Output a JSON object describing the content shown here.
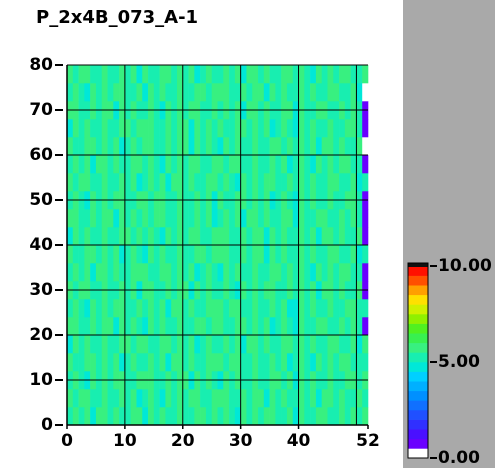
{
  "chart_data": {
    "type": "heatmap",
    "title": "P_2x4B_073_A-1",
    "x_bins": [
      0,
      1,
      2,
      3,
      4,
      5,
      6,
      7,
      8,
      9,
      10,
      11,
      12,
      13,
      14,
      15,
      16,
      17,
      18,
      19,
      20,
      21,
      22,
      23,
      24,
      25,
      26,
      27,
      28,
      29,
      30,
      31,
      32,
      33,
      34,
      35,
      36,
      37,
      38,
      39,
      40,
      41,
      42,
      43,
      44,
      45,
      46,
      47,
      48,
      49,
      50,
      51,
      52
    ],
    "y_bins": [
      0,
      4,
      8,
      12,
      16,
      20,
      24,
      28,
      32,
      36,
      40,
      44,
      48,
      52,
      56,
      60,
      64,
      68,
      72,
      76,
      80
    ],
    "xlim": [
      0,
      52
    ],
    "ylim": [
      0,
      80
    ],
    "xticks": [
      0,
      10,
      20,
      30,
      40,
      52
    ],
    "xgrid": [
      10,
      20,
      30,
      40,
      50
    ],
    "yticks": [
      0,
      10,
      20,
      30,
      40,
      50,
      60,
      70,
      80
    ],
    "grid": true,
    "zlim": [
      0,
      10
    ],
    "zticks": [
      {
        "value": 0,
        "label": "0.00"
      },
      {
        "value": 5,
        "label": "5.00"
      },
      {
        "value": 10,
        "label": "10.00"
      }
    ],
    "colormap": [
      "#ffffff",
      "#6a00ff",
      "#4a10ff",
      "#3030ff",
      "#2050ff",
      "#1070ff",
      "#0090ff",
      "#00b0ff",
      "#00d0ff",
      "#00e8d8",
      "#18eeb0",
      "#38f080",
      "#38f050",
      "#50f020",
      "#90f000",
      "#d0f000",
      "#ffe000",
      "#ffa000",
      "#ff5000",
      "#ff1000"
    ],
    "values": [
      [
        5.4,
        5.8,
        5.1,
        5.6,
        4.9,
        5.5,
        5.9,
        5.2,
        5.7,
        5.0,
        5.3,
        5.8,
        5.5,
        4.8,
        5.6,
        5.2,
        5.9,
        5.4,
        5.1,
        5.7,
        5.3,
        5.0,
        5.8,
        5.5,
        5.2,
        5.6,
        5.1,
        5.7,
        5.4,
        4.9,
        5.8,
        5.3,
        5.6,
        5.0,
        5.5,
        5.9,
        5.2,
        5.4,
        5.7,
        4.8,
        5.6,
        5.3,
        5.1,
        5.8,
        5.5,
        5.0,
        5.4,
        5.7,
        5.2,
        5.9,
        5.3,
        5.5
      ],
      [
        5.6,
        5.2,
        5.5,
        5.8,
        5.0,
        5.3,
        5.7,
        5.1,
        5.4,
        5.9,
        5.2,
        5.6,
        4.8,
        5.1,
        5.7,
        5.4,
        4.9,
        5.8,
        5.3,
        5.6,
        5.0,
        5.5,
        5.9,
        5.2,
        5.4,
        5.7,
        5.5,
        5.8,
        5.3,
        5.0,
        5.7,
        5.2,
        5.9,
        5.5,
        4.9,
        5.6,
        5.1,
        5.8,
        5.4,
        5.4,
        5.8,
        5.1,
        5.6,
        4.9,
        5.5,
        5.9,
        5.2,
        5.7,
        5.0,
        5.3,
        5.8,
        5.3
      ],
      [
        5.1,
        5.7,
        5.4,
        4.9,
        5.8,
        5.3,
        5.6,
        5.0,
        5.5,
        5.9,
        5.2,
        5.4,
        5.7,
        5.5,
        5.8,
        5.3,
        5.0,
        5.7,
        5.2,
        5.9,
        5.5,
        4.9,
        5.6,
        5.1,
        5.8,
        5.4,
        4.8,
        5.6,
        5.2,
        5.9,
        5.4,
        5.1,
        5.7,
        5.3,
        5.0,
        5.8,
        5.5,
        5.2,
        5.6,
        4.8,
        5.6,
        5.2,
        5.9,
        5.4,
        5.1,
        5.7,
        5.3,
        5.0,
        5.8,
        5.5,
        5.2,
        5.6
      ],
      [
        5.7,
        5.4,
        5.2,
        5.9,
        5.5,
        5.0,
        5.6,
        5.3,
        5.8,
        4.9,
        5.4,
        5.7,
        5.1,
        5.4,
        5.8,
        5.1,
        5.6,
        4.9,
        5.5,
        5.9,
        5.2,
        5.7,
        5.0,
        5.3,
        5.8,
        5.5,
        5.6,
        5.2,
        5.5,
        5.8,
        5.0,
        5.3,
        5.7,
        5.1,
        5.4,
        5.9,
        5.2,
        5.6,
        4.8,
        5.1,
        5.7,
        5.4,
        4.9,
        5.8,
        5.3,
        5.6,
        5.0,
        5.5,
        5.9,
        5.2,
        5.4,
        5.4
      ],
      [
        4.8,
        5.6,
        5.2,
        5.9,
        5.4,
        5.1,
        5.7,
        5.3,
        5.0,
        5.8,
        5.5,
        5.2,
        5.6,
        5.7,
        5.4,
        5.2,
        5.9,
        5.5,
        5.0,
        5.6,
        5.3,
        5.8,
        4.9,
        5.4,
        5.7,
        5.1,
        5.4,
        5.8,
        5.1,
        5.6,
        4.9,
        5.5,
        5.9,
        5.2,
        5.7,
        5.0,
        5.3,
        5.8,
        5.5,
        5.3,
        5.9,
        5.2,
        5.7,
        5.4,
        5.0,
        5.5,
        5.8,
        5.1,
        5.3,
        5.6,
        4.8,
        5.5
      ],
      [
        5.5,
        5.8,
        5.3,
        5.0,
        5.7,
        5.2,
        5.9,
        5.5,
        4.9,
        5.6,
        5.1,
        5.8,
        5.4,
        4.8,
        5.6,
        5.2,
        5.9,
        5.4,
        5.1,
        5.7,
        5.3,
        5.0,
        5.8,
        5.5,
        5.2,
        5.6,
        5.7,
        5.4,
        5.2,
        5.9,
        5.5,
        5.0,
        5.6,
        5.3,
        5.8,
        4.9,
        5.4,
        5.7,
        5.1,
        4.8,
        5.6,
        5.3,
        5.1,
        5.8,
        5.5,
        5.0,
        5.4,
        5.7,
        5.2,
        5.9,
        5.3,
        0.6
      ],
      [
        5.1,
        5.7,
        5.4,
        4.9,
        5.8,
        5.3,
        5.6,
        5.0,
        5.5,
        5.9,
        5.2,
        5.4,
        5.7,
        5.4,
        5.8,
        5.1,
        5.6,
        4.9,
        5.5,
        5.9,
        5.2,
        5.7,
        5.0,
        5.3,
        5.8,
        5.5,
        5.6,
        5.2,
        5.5,
        5.8,
        5.0,
        5.3,
        5.7,
        5.1,
        5.4,
        5.9,
        5.2,
        5.6,
        4.8,
        4.8,
        5.6,
        5.2,
        5.9,
        5.4,
        5.1,
        5.7,
        5.3,
        5.0,
        5.8,
        5.5,
        5.2,
        5.3
      ],
      [
        5.6,
        5.2,
        5.5,
        5.8,
        5.0,
        5.3,
        5.7,
        5.1,
        5.4,
        5.9,
        5.2,
        5.6,
        4.8,
        5.5,
        5.8,
        5.3,
        5.0,
        5.7,
        5.2,
        5.9,
        5.5,
        4.9,
        5.6,
        5.1,
        5.8,
        5.4,
        5.1,
        5.7,
        5.4,
        4.9,
        5.8,
        5.3,
        5.6,
        5.0,
        5.5,
        5.9,
        5.2,
        5.4,
        5.7,
        5.4,
        5.8,
        5.1,
        5.6,
        4.9,
        5.5,
        5.9,
        5.2,
        5.7,
        5.0,
        5.3,
        5.8,
        0.7
      ],
      [
        5.4,
        5.8,
        5.1,
        5.6,
        4.9,
        5.5,
        5.9,
        5.2,
        5.7,
        5.0,
        5.3,
        5.8,
        5.5,
        5.7,
        5.4,
        5.2,
        5.9,
        5.5,
        5.0,
        5.6,
        5.3,
        5.8,
        4.9,
        5.4,
        5.7,
        5.1,
        4.8,
        5.6,
        5.2,
        5.9,
        5.4,
        5.1,
        5.7,
        5.3,
        5.0,
        5.8,
        5.5,
        5.2,
        5.6,
        5.1,
        5.7,
        5.4,
        4.9,
        5.8,
        5.3,
        5.6,
        5.0,
        5.5,
        5.9,
        5.2,
        5.4,
        0.5
      ],
      [
        5.7,
        5.4,
        5.2,
        5.9,
        5.5,
        5.0,
        5.6,
        5.3,
        5.8,
        4.9,
        5.4,
        5.7,
        5.1,
        4.8,
        5.6,
        5.2,
        5.9,
        5.4,
        5.1,
        5.7,
        5.3,
        5.0,
        5.8,
        5.5,
        5.2,
        5.6,
        5.5,
        5.8,
        5.3,
        5.0,
        5.7,
        5.2,
        5.9,
        5.5,
        4.9,
        5.6,
        5.1,
        5.8,
        5.4,
        5.3,
        5.9,
        5.2,
        5.7,
        5.4,
        5.0,
        5.5,
        5.8,
        5.1,
        5.3,
        5.6,
        4.8,
        5.2
      ],
      [
        4.8,
        5.6,
        5.2,
        5.9,
        5.4,
        5.1,
        5.7,
        5.3,
        5.0,
        5.8,
        5.5,
        5.2,
        5.6,
        5.1,
        5.7,
        5.4,
        4.9,
        5.8,
        5.3,
        5.6,
        5.0,
        5.5,
        5.9,
        5.2,
        5.4,
        5.7,
        5.5,
        5.8,
        5.3,
        5.0,
        5.7,
        5.2,
        5.9,
        5.5,
        4.9,
        5.6,
        5.1,
        5.8,
        5.4,
        5.4,
        5.8,
        5.1,
        5.6,
        4.9,
        5.5,
        5.9,
        5.2,
        5.7,
        5.0,
        5.3,
        5.8,
        0.6
      ],
      [
        5.5,
        5.8,
        5.3,
        5.0,
        5.7,
        5.2,
        5.9,
        5.5,
        4.9,
        5.6,
        5.1,
        5.8,
        5.4,
        5.6,
        5.2,
        5.5,
        5.8,
        5.0,
        5.3,
        5.7,
        5.1,
        5.4,
        5.9,
        5.2,
        5.6,
        4.8,
        5.4,
        5.8,
        5.1,
        5.6,
        4.9,
        5.5,
        5.9,
        5.2,
        5.7,
        5.0,
        5.3,
        5.8,
        5.5,
        4.8,
        5.6,
        5.3,
        5.1,
        5.8,
        5.5,
        5.0,
        5.4,
        5.7,
        5.2,
        5.9,
        5.3,
        0.5
      ],
      [
        5.1,
        5.7,
        5.4,
        4.9,
        5.8,
        5.3,
        5.6,
        5.0,
        5.5,
        5.9,
        5.2,
        5.4,
        5.7,
        5.6,
        5.2,
        5.5,
        5.8,
        5.0,
        5.3,
        5.7,
        5.1,
        5.4,
        5.9,
        5.2,
        5.6,
        4.8,
        5.7,
        5.4,
        5.2,
        5.9,
        5.5,
        5.0,
        5.6,
        5.3,
        5.8,
        4.9,
        5.4,
        5.7,
        5.1,
        4.8,
        5.6,
        5.2,
        5.9,
        5.4,
        5.1,
        5.7,
        5.3,
        5.0,
        5.8,
        5.5,
        5.2,
        0.6
      ],
      [
        5.6,
        5.2,
        5.5,
        5.8,
        5.0,
        5.3,
        5.7,
        5.1,
        5.4,
        5.9,
        5.2,
        5.6,
        4.8,
        5.4,
        5.8,
        5.1,
        5.6,
        4.9,
        5.5,
        5.9,
        5.2,
        5.7,
        5.0,
        5.3,
        5.8,
        5.5,
        5.1,
        5.7,
        5.4,
        4.9,
        5.8,
        5.3,
        5.6,
        5.0,
        5.5,
        5.9,
        5.2,
        5.4,
        5.7,
        5.3,
        5.9,
        5.2,
        5.7,
        5.4,
        5.0,
        5.5,
        5.8,
        5.1,
        5.3,
        5.6,
        4.8,
        5.4
      ],
      [
        5.4,
        5.8,
        5.1,
        5.6,
        4.9,
        5.5,
        5.9,
        5.2,
        5.7,
        5.0,
        5.3,
        5.8,
        5.5,
        5.1,
        5.7,
        5.4,
        4.9,
        5.8,
        5.3,
        5.6,
        5.0,
        5.5,
        5.9,
        5.2,
        5.4,
        5.7,
        5.6,
        5.2,
        5.5,
        5.8,
        5.0,
        5.3,
        5.7,
        5.1,
        5.4,
        5.9,
        5.2,
        5.6,
        4.8,
        5.1,
        5.7,
        5.4,
        4.9,
        5.8,
        5.3,
        5.6,
        5.0,
        5.5,
        5.9,
        5.2,
        5.4,
        0.5
      ],
      [
        5.7,
        5.4,
        5.2,
        5.9,
        5.5,
        5.0,
        5.6,
        5.3,
        5.8,
        4.9,
        5.4,
        5.7,
        5.1,
        5.5,
        5.8,
        5.3,
        5.0,
        5.7,
        5.2,
        5.9,
        5.5,
        4.9,
        5.6,
        5.1,
        5.8,
        5.4,
        4.8,
        5.6,
        5.2,
        5.9,
        5.4,
        5.1,
        5.7,
        5.3,
        5.0,
        5.8,
        5.5,
        5.2,
        5.6,
        5.4,
        5.8,
        5.1,
        5.6,
        4.9,
        5.5,
        5.9,
        5.2,
        5.7,
        5.0,
        5.3,
        5.8,
        0.4
      ],
      [
        4.8,
        5.6,
        5.2,
        5.9,
        5.4,
        5.1,
        5.7,
        5.3,
        5.0,
        5.8,
        5.5,
        5.2,
        5.6,
        5.5,
        5.8,
        5.3,
        5.0,
        5.7,
        5.2,
        5.9,
        5.5,
        4.9,
        5.6,
        5.1,
        5.8,
        5.4,
        5.7,
        5.4,
        5.2,
        5.9,
        5.5,
        5.0,
        5.6,
        5.3,
        5.8,
        4.9,
        5.4,
        5.7,
        5.1,
        4.8,
        5.6,
        5.2,
        5.9,
        5.4,
        5.1,
        5.7,
        5.3,
        5.0,
        5.8,
        5.5,
        5.2,
        0.6
      ],
      [
        5.5,
        5.8,
        5.3,
        5.0,
        5.7,
        5.2,
        5.9,
        5.5,
        4.9,
        5.6,
        5.1,
        5.8,
        5.4,
        5.1,
        5.7,
        5.4,
        4.9,
        5.8,
        5.3,
        5.6,
        5.0,
        5.5,
        5.9,
        5.2,
        5.4,
        5.7,
        5.4,
        5.8,
        5.1,
        5.6,
        4.9,
        5.5,
        5.9,
        5.2,
        5.7,
        5.0,
        5.3,
        5.8,
        5.5,
        4.8,
        5.6,
        5.3,
        5.1,
        5.8,
        5.5,
        5.0,
        5.4,
        5.7,
        5.2,
        5.9,
        5.3,
        0.5
      ],
      [
        5.1,
        5.7,
        5.4,
        4.9,
        5.8,
        5.3,
        5.6,
        5.0,
        5.5,
        5.9,
        5.2,
        5.4,
        5.7,
        4.8,
        5.6,
        5.2,
        5.9,
        5.4,
        5.1,
        5.7,
        5.3,
        5.0,
        5.8,
        5.5,
        5.2,
        5.6,
        5.5,
        5.8,
        5.3,
        5.0,
        5.7,
        5.2,
        5.9,
        5.5,
        4.9,
        5.6,
        5.1,
        5.8,
        5.4,
        5.3,
        5.9,
        5.2,
        5.7,
        5.4,
        5.0,
        5.5,
        5.8,
        5.1,
        5.3,
        5.6,
        4.8,
        0.4
      ],
      [
        5.6,
        5.2,
        5.5,
        5.8,
        5.0,
        5.3,
        5.7,
        5.1,
        5.4,
        5.9,
        5.2,
        5.6,
        4.8,
        5.7,
        5.4,
        5.2,
        5.9,
        5.5,
        5.0,
        5.6,
        5.3,
        5.8,
        4.9,
        5.4,
        5.7,
        5.1,
        5.4,
        5.8,
        5.1,
        5.6,
        4.9,
        5.5,
        5.9,
        5.2,
        5.7,
        5.0,
        5.3,
        5.8,
        5.5,
        5.1,
        5.7,
        5.4,
        4.9,
        5.8,
        5.3,
        5.6,
        5.0,
        5.5,
        5.9,
        5.2,
        5.4,
        5.6
      ]
    ]
  }
}
